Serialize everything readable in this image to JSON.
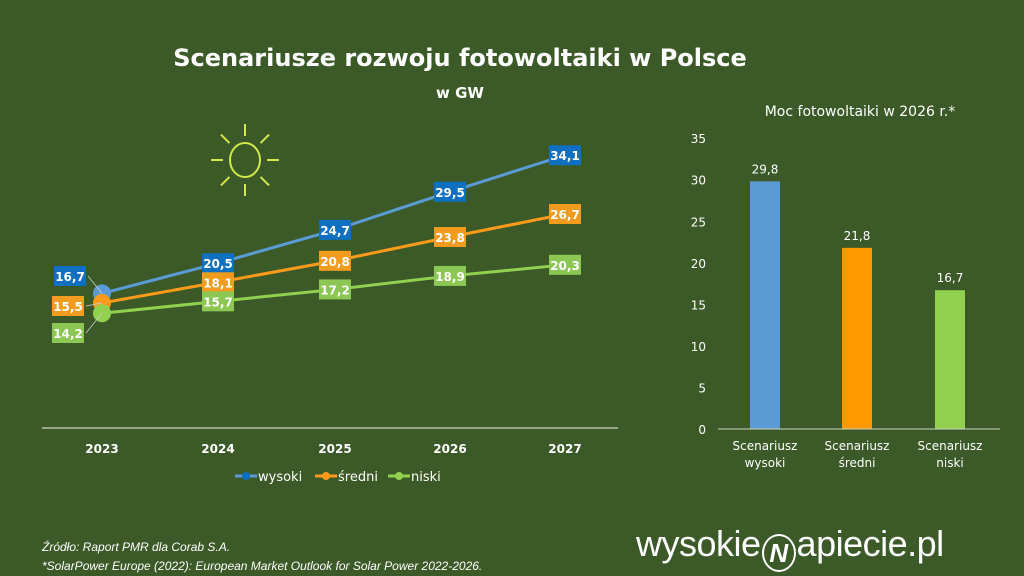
{
  "chart_data": [
    {
      "type": "line",
      "title": "Scenariusze rozwoju fotowoltaiki w Polsce",
      "subtitle": "w GW",
      "categories": [
        "2023",
        "2024",
        "2025",
        "2026",
        "2027"
      ],
      "series": [
        {
          "name": "wysoki",
          "values": [
            16.7,
            20.5,
            24.7,
            29.5,
            34.1
          ],
          "color": "#5b9bd5",
          "label_color": "#0f6fc0"
        },
        {
          "name": "średni",
          "values": [
            15.5,
            18.1,
            20.8,
            23.8,
            26.7
          ],
          "color": "#ff9a1a",
          "label_color": "#f29b1c"
        },
        {
          "name": "niski",
          "values": [
            14.2,
            15.7,
            17.2,
            18.9,
            20.3
          ],
          "color": "#92d050",
          "label_color": "#8cc653"
        }
      ],
      "value_labels": {
        "wysoki": [
          "16,7",
          "20,5",
          "24,7",
          "29,5",
          "34,1"
        ],
        "średni": [
          "15,5",
          "18,1",
          "20,8",
          "23,8",
          "26,7"
        ],
        "niski": [
          "14,2",
          "15,7",
          "17,2",
          "18,9",
          "20,3"
        ]
      },
      "legend": "bottom",
      "grid": false
    },
    {
      "type": "bar",
      "title": "Moc fotowoltaiki w 2026 r.*",
      "categories": [
        [
          "Scenariusz",
          "wysoki"
        ],
        [
          "Scenariusz",
          "średni"
        ],
        [
          "Scenariusz",
          "niski"
        ]
      ],
      "values": [
        29.8,
        21.8,
        16.7
      ],
      "value_labels": [
        "29,8",
        "21,8",
        "16,7"
      ],
      "colors": [
        "#5b9bd5",
        "#ff9900",
        "#92d050"
      ],
      "ylim": [
        0,
        35
      ],
      "yticks": [
        "0",
        "5",
        "10",
        "15",
        "20",
        "25",
        "30",
        "35"
      ],
      "grid": false
    }
  ],
  "footer": {
    "source": "Źródło:  Raport PMR dla Corab S.A.",
    "note": "*SolarPower Europe (2022): European Market Outlook for Solar Power 2022-2026."
  },
  "logo": {
    "text": "wysokienapiecie.pl",
    "left": "wysokie",
    "right": "apiecie.pl"
  },
  "colors": {
    "background": "#3b5a27",
    "sun": "#d4e84a"
  },
  "icons": {
    "sun": "sun-icon"
  }
}
